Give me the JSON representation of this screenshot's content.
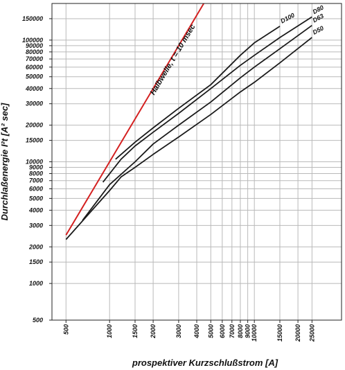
{
  "chart_data": {
    "type": "line",
    "xscale": "log",
    "yscale": "log",
    "xlim": [
      400,
      40000
    ],
    "ylim": [
      500,
      200000
    ],
    "grid": true,
    "xlabel": "prospektiver Kurzschlußstrom [A]",
    "ylabel": "Durchlaßenergie I²t [A² sec]",
    "x_ticks": [
      500,
      1000,
      1500,
      2000,
      3000,
      4000,
      5000,
      6000,
      7000,
      8000,
      9000,
      10000,
      15000,
      20000,
      25000
    ],
    "x_tick_labels": [
      "500",
      "1000",
      "1500",
      "2000",
      "3000",
      "4000",
      "5000",
      "6000",
      "7000",
      "8000",
      "9000",
      "10000",
      "15000",
      "20000",
      "25000"
    ],
    "y_ticks": [
      500,
      1000,
      1500,
      2000,
      3000,
      4000,
      5000,
      6000,
      7000,
      8000,
      9000,
      10000,
      15000,
      20000,
      30000,
      40000,
      50000,
      60000,
      70000,
      80000,
      90000,
      100000,
      150000
    ],
    "y_tick_labels": [
      "500",
      "1000",
      "1500",
      "2000",
      "3000",
      "4000",
      "5000",
      "6000",
      "7000",
      "8000",
      "9000",
      "10000",
      "15000",
      "20000",
      "30000",
      "40000",
      "50000",
      "60000",
      "70000",
      "80000",
      "90000",
      "100000",
      "150000"
    ],
    "annotation": "Halbwelle, t = 10 msec",
    "series": [
      {
        "name": "Halbwelle, t = 10 msec",
        "color": "#d42020",
        "points": [
          [
            500,
            2500
          ],
          [
            1000,
            10000
          ],
          [
            2000,
            40000
          ],
          [
            4000,
            160000
          ],
          [
            4900,
            240000
          ]
        ]
      },
      {
        "name": "D100",
        "color": "#1a1a1a",
        "points": [
          [
            1100,
            10500
          ],
          [
            1500,
            14500
          ],
          [
            2000,
            19000
          ],
          [
            3000,
            27500
          ],
          [
            5000,
            43000
          ],
          [
            8000,
            75000
          ],
          [
            10000,
            95000
          ],
          [
            15000,
            130000
          ]
        ]
      },
      {
        "name": "D80",
        "color": "#1a1a1a",
        "points": [
          [
            900,
            6800
          ],
          [
            1200,
            10500
          ],
          [
            1500,
            13500
          ],
          [
            2000,
            17500
          ],
          [
            3000,
            25000
          ],
          [
            5000,
            40000
          ],
          [
            8000,
            62000
          ],
          [
            10000,
            75000
          ],
          [
            15000,
            105000
          ],
          [
            25000,
            155000
          ]
        ]
      },
      {
        "name": "D63",
        "color": "#1a1a1a",
        "points": [
          [
            650,
            3300
          ],
          [
            1000,
            6500
          ],
          [
            1500,
            10000
          ],
          [
            2000,
            14000
          ],
          [
            3000,
            20000
          ],
          [
            5000,
            31000
          ],
          [
            8000,
            49000
          ],
          [
            10000,
            60000
          ],
          [
            15000,
            85000
          ],
          [
            25000,
            132000
          ]
        ]
      },
      {
        "name": "D50",
        "color": "#1a1a1a",
        "points": [
          [
            500,
            2300
          ],
          [
            1000,
            5800
          ],
          [
            1200,
            7500
          ],
          [
            1500,
            9000
          ],
          [
            2000,
            11500
          ],
          [
            3000,
            16000
          ],
          [
            5000,
            24500
          ],
          [
            8000,
            37500
          ],
          [
            10000,
            45000
          ],
          [
            15000,
            65000
          ],
          [
            25000,
            105000
          ]
        ]
      }
    ]
  }
}
